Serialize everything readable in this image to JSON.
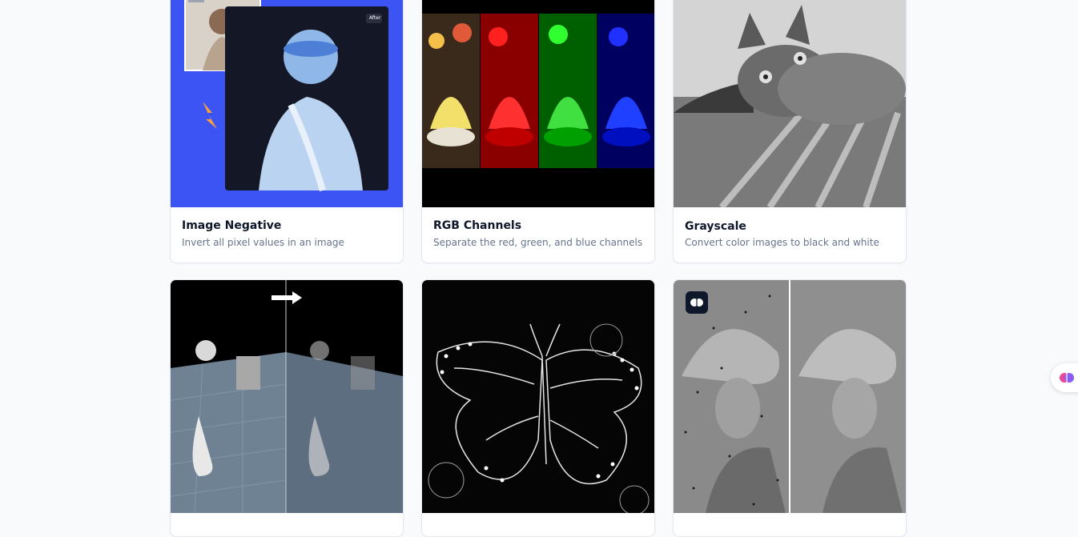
{
  "cards": [
    {
      "title": "Image Negative",
      "description": "Invert all pixel values in an image",
      "after_label": "After"
    },
    {
      "title": "RGB Channels",
      "description": "Separate the red, green, and blue channels"
    },
    {
      "title": "Grayscale",
      "description": "Convert color images to black and white"
    },
    {
      "icon": "arrow-right-icon"
    },
    {
      "icon": "butterfly-edges"
    },
    {
      "icon": "brain-icon"
    }
  ],
  "colors": {
    "negative_bg": "#3d54f5",
    "accent_orange": "#f59e42",
    "badge_bg": "#0f172a"
  },
  "floating_widget": {
    "icon": "brain-icon"
  }
}
